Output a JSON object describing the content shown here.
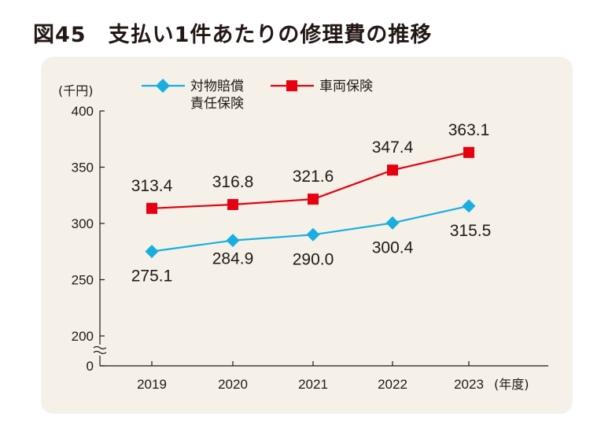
{
  "page": {
    "title": "図45　支払い1件あたりの修理費の推移"
  },
  "chart_data": {
    "type": "line",
    "title": "支払い1件あたりの修理費の推移",
    "ylabel": "(千円)",
    "xlabel": "(年度)",
    "categories": [
      "2019",
      "2020",
      "2021",
      "2022",
      "2023"
    ],
    "ylim": [
      200,
      400
    ],
    "yticks": [
      0,
      200,
      250,
      300,
      350,
      400
    ],
    "axis_break": true,
    "series": [
      {
        "name": "対物賠償責任保険",
        "legend_lines": [
          "対物賠償",
          "責任保険"
        ],
        "marker": "diamond",
        "color": "#1aaee0",
        "values": [
          275.1,
          284.9,
          290.0,
          300.4,
          315.5
        ],
        "labels": [
          "275.1",
          "284.9",
          "290.0",
          "300.4",
          "315.5"
        ]
      },
      {
        "name": "車両保険",
        "legend_lines": [
          "車両保険"
        ],
        "marker": "square",
        "color": "#e60012",
        "values": [
          313.4,
          316.8,
          321.6,
          347.4,
          363.1
        ],
        "labels": [
          "313.4",
          "316.8",
          "321.6",
          "347.4",
          "363.1"
        ]
      }
    ],
    "legend_position": "top"
  }
}
